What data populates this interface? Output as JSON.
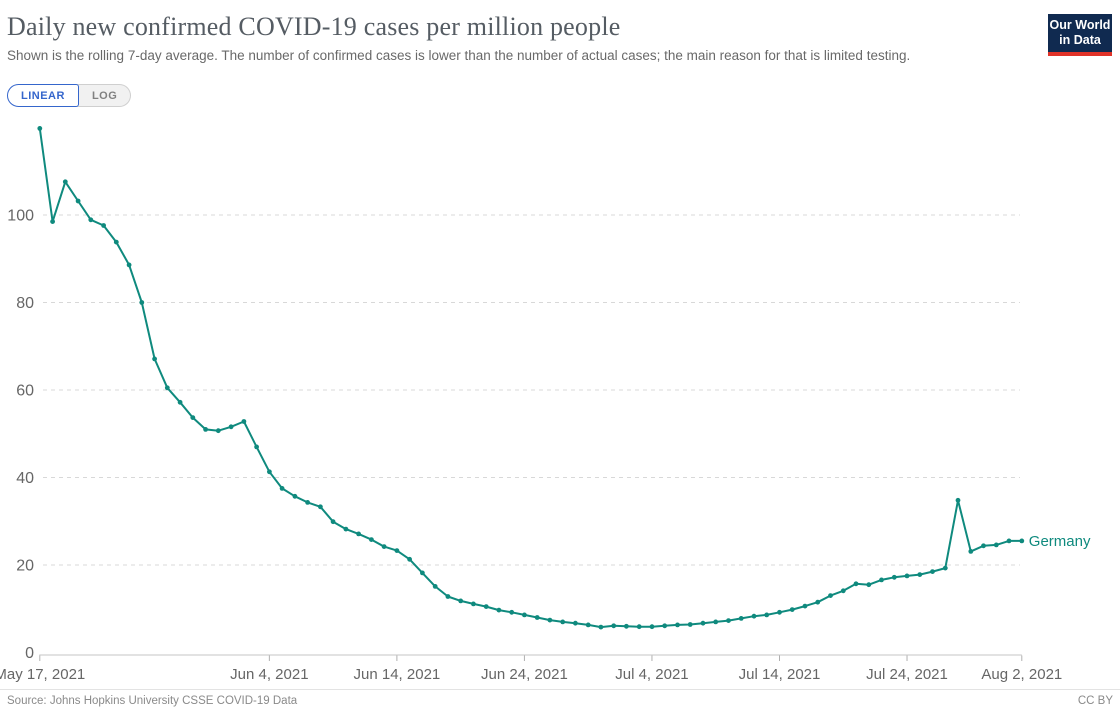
{
  "header": {
    "title": "Daily new confirmed COVID-19 cases per million people",
    "subtitle": "Shown is the rolling 7-day average. The number of confirmed cases is lower than the number of actual cases; the main reason for that is limited testing."
  },
  "toggle": {
    "linear_label": "LINEAR",
    "log_label": "LOG",
    "active": "LINEAR",
    "active_color": "#3566cc"
  },
  "logo": {
    "line1": "Our World",
    "line2": "in Data",
    "bg_color": "#102a50",
    "accent_color": "#e03228"
  },
  "footer": {
    "source": "Source: Johns Hopkins University CSSE COVID-19 Data",
    "license": "CC BY"
  },
  "chart_data": {
    "type": "line",
    "title": "Daily new confirmed COVID-19 cases per million people",
    "xlabel": "",
    "ylabel": "",
    "ylim": [
      0,
      120
    ],
    "yticks": [
      0,
      20,
      40,
      60,
      80,
      100
    ],
    "grid": "horizontal-dashed",
    "legend": "end-of-line-label",
    "marker": "circle",
    "colors": {
      "grid": "#d8d8d8",
      "axis": "#c6c6c6",
      "tick": "#b0b0b0",
      "tick_label": "#666666"
    },
    "xticks": [
      {
        "label": "May 17, 2021",
        "day": 0
      },
      {
        "label": "Jun 4, 2021",
        "day": 18
      },
      {
        "label": "Jun 14, 2021",
        "day": 28
      },
      {
        "label": "Jun 24, 2021",
        "day": 38
      },
      {
        "label": "Jul 4, 2021",
        "day": 48
      },
      {
        "label": "Jul 14, 2021",
        "day": 58
      },
      {
        "label": "Jul 24, 2021",
        "day": 68
      },
      {
        "label": "Aug 2, 2021",
        "day": 77
      }
    ],
    "series": [
      {
        "name": "Germany",
        "color": "#0f8a7e",
        "dates": [
          "2021-05-17",
          "2021-05-18",
          "2021-05-19",
          "2021-05-20",
          "2021-05-21",
          "2021-05-22",
          "2021-05-23",
          "2021-05-24",
          "2021-05-25",
          "2021-05-26",
          "2021-05-27",
          "2021-05-28",
          "2021-05-29",
          "2021-05-30",
          "2021-05-31",
          "2021-06-01",
          "2021-06-02",
          "2021-06-03",
          "2021-06-04",
          "2021-06-05",
          "2021-06-06",
          "2021-06-07",
          "2021-06-08",
          "2021-06-09",
          "2021-06-10",
          "2021-06-11",
          "2021-06-12",
          "2021-06-13",
          "2021-06-14",
          "2021-06-15",
          "2021-06-16",
          "2021-06-17",
          "2021-06-18",
          "2021-06-19",
          "2021-06-20",
          "2021-06-21",
          "2021-06-22",
          "2021-06-23",
          "2021-06-24",
          "2021-06-25",
          "2021-06-26",
          "2021-06-27",
          "2021-06-28",
          "2021-06-29",
          "2021-06-30",
          "2021-07-01",
          "2021-07-02",
          "2021-07-03",
          "2021-07-04",
          "2021-07-05",
          "2021-07-06",
          "2021-07-07",
          "2021-07-08",
          "2021-07-09",
          "2021-07-10",
          "2021-07-11",
          "2021-07-12",
          "2021-07-13",
          "2021-07-14",
          "2021-07-15",
          "2021-07-16",
          "2021-07-17",
          "2021-07-18",
          "2021-07-19",
          "2021-07-20",
          "2021-07-21",
          "2021-07-22",
          "2021-07-23",
          "2021-07-24",
          "2021-07-25",
          "2021-07-26",
          "2021-07-27",
          "2021-07-28",
          "2021-07-29",
          "2021-07-30",
          "2021-07-31",
          "2021-08-01",
          "2021-08-02"
        ],
        "values": [
          119.8,
          98.5,
          107.6,
          103.2,
          98.9,
          97.6,
          93.8,
          88.6,
          80.0,
          67.1,
          60.5,
          57.2,
          53.7,
          51.0,
          50.7,
          51.6,
          52.8,
          47.0,
          41.3,
          37.5,
          35.7,
          34.3,
          33.3,
          29.9,
          28.2,
          27.1,
          25.8,
          24.2,
          23.3,
          21.3,
          18.2,
          15.1,
          12.8,
          11.8,
          11.1,
          10.5,
          9.7,
          9.2,
          8.6,
          8.0,
          7.4,
          7.0,
          6.7,
          6.3,
          5.8,
          6.1,
          6.0,
          5.9,
          5.9,
          6.1,
          6.3,
          6.4,
          6.7,
          7.0,
          7.3,
          7.8,
          8.3,
          8.6,
          9.2,
          9.8,
          10.6,
          11.5,
          13.0,
          14.1,
          15.7,
          15.5,
          16.6,
          17.2,
          17.5,
          17.8,
          18.5,
          19.3,
          34.8,
          23.1,
          24.4,
          24.6,
          25.5,
          25.5
        ]
      }
    ]
  }
}
